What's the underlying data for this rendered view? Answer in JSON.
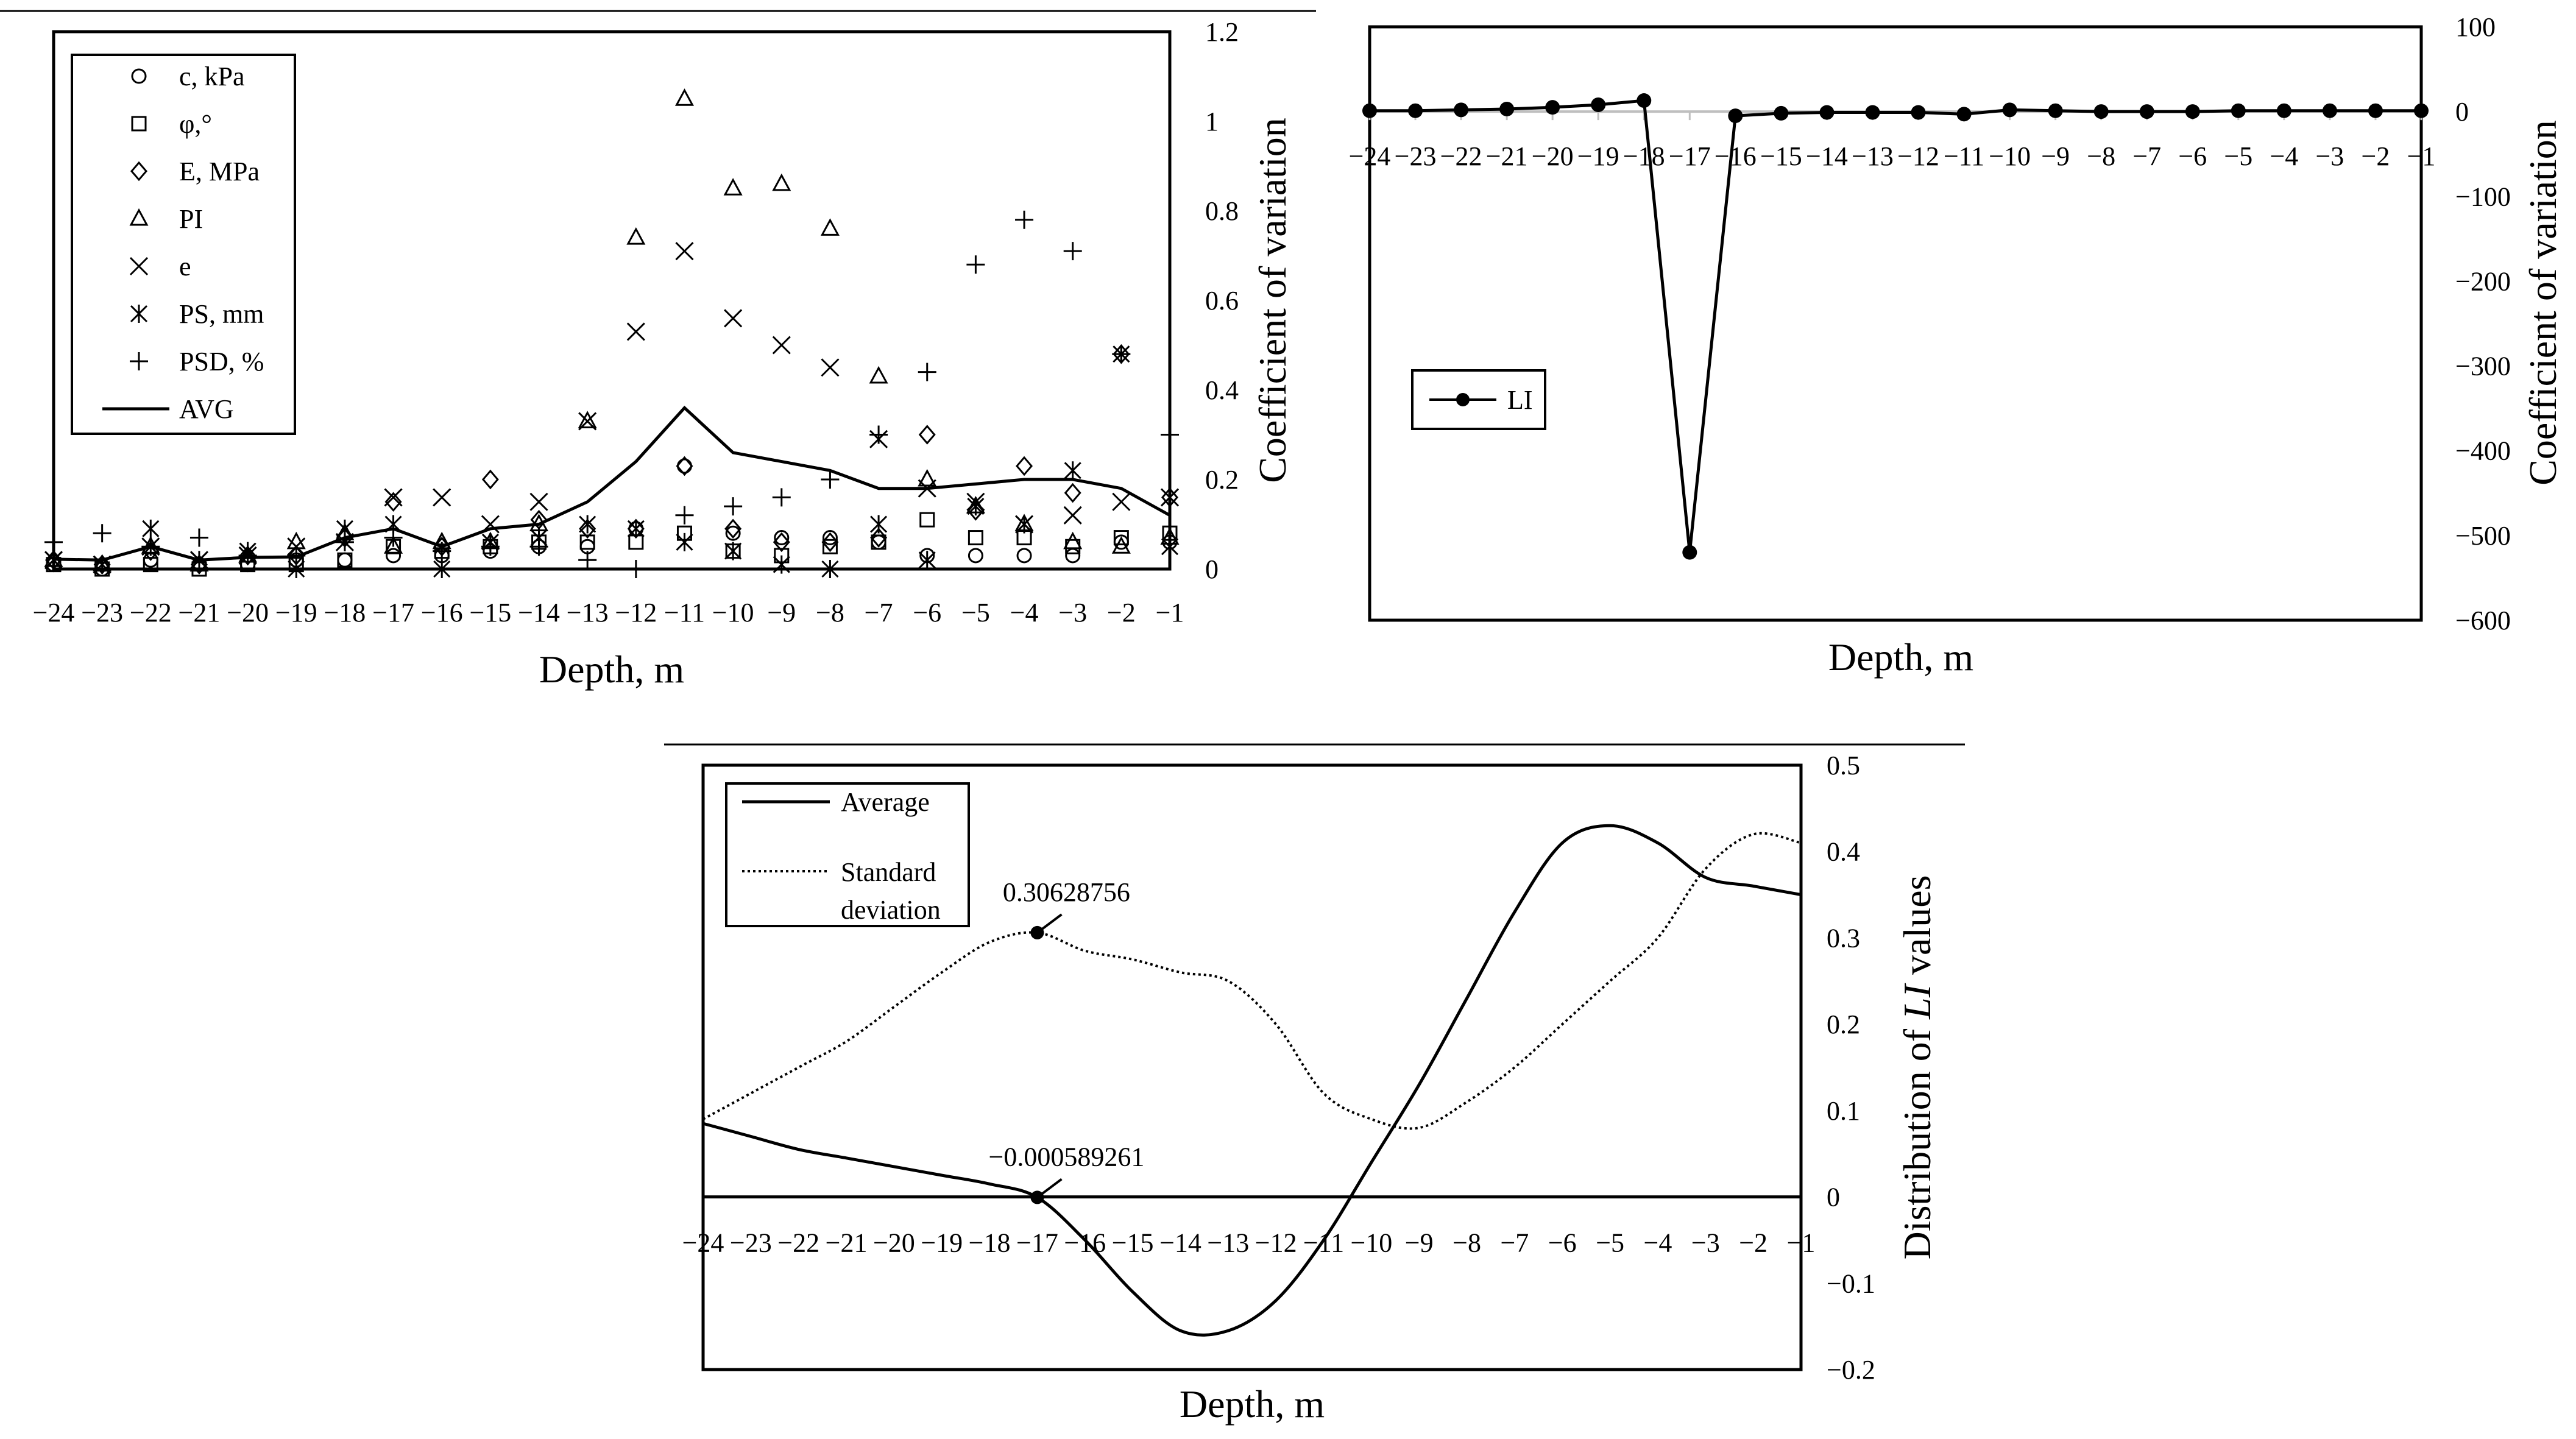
{
  "chart_data": [
    {
      "id": "chart-a",
      "type": "scatter",
      "xlabel": "Depth, m",
      "ylabel": "Coefficient of variation",
      "xlim": [
        -24,
        -1
      ],
      "ylim": [
        0,
        1.2
      ],
      "x_ticks": [
        "−24",
        "−23",
        "−22",
        "−21",
        "−20",
        "−19",
        "−18",
        "−17",
        "−16",
        "−15",
        "−14",
        "−13",
        "−12",
        "−11",
        "−10",
        "−9",
        "−8",
        "−7",
        "−6",
        "−5",
        "−4",
        "−3",
        "−2",
        "−1"
      ],
      "y_ticks": [
        "0",
        "0.2",
        "0.4",
        "0.6",
        "0.8",
        "1",
        "1.2"
      ],
      "x": [
        -24,
        -23,
        -22,
        -21,
        -20,
        -19,
        -18,
        -17,
        -16,
        -15,
        -14,
        -13,
        -12,
        -11,
        -10,
        -9,
        -8,
        -7,
        -6,
        -5,
        -4,
        -3,
        -2,
        -1
      ],
      "legend": [
        "c, kPa",
        "φ,°",
        "E, MPa",
        "PI",
        "e",
        "PS, mm",
        "PSD, %",
        "AVG"
      ],
      "series": [
        {
          "name": "c, kPa",
          "marker": "circle",
          "values": [
            0.01,
            0.0,
            0.02,
            0.01,
            0.01,
            0.02,
            0.02,
            0.03,
            0.03,
            0.04,
            0.05,
            0.05,
            0.09,
            0.23,
            0.08,
            0.07,
            0.07,
            0.06,
            0.03,
            0.03,
            0.03,
            0.03,
            0.06,
            0.06
          ]
        },
        {
          "name": "φ,°",
          "marker": "square",
          "values": [
            0.01,
            0.0,
            0.01,
            0.0,
            0.01,
            0.01,
            0.02,
            0.05,
            0.04,
            0.05,
            0.06,
            0.06,
            0.06,
            0.08,
            0.04,
            0.03,
            0.05,
            0.06,
            0.11,
            0.07,
            0.07,
            0.05,
            0.07,
            0.08
          ]
        },
        {
          "name": "E, MPa",
          "marker": "diamond",
          "values": [
            0.02,
            0.01,
            0.04,
            0.01,
            0.03,
            0.03,
            0.07,
            0.15,
            0.05,
            0.2,
            0.11,
            0.09,
            0.09,
            0.23,
            0.09,
            0.06,
            0.06,
            0.07,
            0.3,
            0.13,
            0.23,
            0.17,
            0.48,
            0.16
          ]
        },
        {
          "name": "PI",
          "marker": "triangle",
          "values": [
            0.02,
            0.01,
            0.05,
            0.01,
            0.03,
            0.06,
            0.08,
            0.05,
            0.06,
            0.06,
            0.1,
            0.33,
            0.74,
            1.05,
            0.85,
            0.86,
            0.76,
            0.43,
            0.2,
            0.14,
            0.1,
            0.06,
            0.05,
            0.07
          ]
        },
        {
          "name": "e",
          "marker": "x",
          "values": [
            0.02,
            0.01,
            0.05,
            0.02,
            0.03,
            0.05,
            0.06,
            0.16,
            0.16,
            0.1,
            0.15,
            0.33,
            0.53,
            0.71,
            0.56,
            0.5,
            0.45,
            0.29,
            0.18,
            0.15,
            0.1,
            0.12,
            0.15,
            0.16
          ]
        },
        {
          "name": "PS, mm",
          "marker": "asterisk",
          "values": [
            0.02,
            0.01,
            0.09,
            0.02,
            0.04,
            0.0,
            0.09,
            0.1,
            0.0,
            0.06,
            0.07,
            0.1,
            0.09,
            0.06,
            0.04,
            0.01,
            0.0,
            0.1,
            0.02,
            0.14,
            0.1,
            0.22,
            0.48,
            0.05
          ]
        },
        {
          "name": "PSD, %",
          "marker": "plus",
          "values": [
            0.06,
            0.08,
            0.05,
            0.07,
            0.03,
            0.03,
            0.06,
            0.07,
            0.04,
            0.05,
            0.05,
            0.02,
            0.0,
            0.12,
            0.14,
            0.16,
            0.2,
            0.3,
            0.44,
            0.68,
            0.78,
            0.71,
            0.48,
            0.3
          ]
        },
        {
          "name": "AVG",
          "marker": "line",
          "values": [
            0.022,
            0.02,
            0.05,
            0.02,
            0.026,
            0.027,
            0.07,
            0.09,
            0.05,
            0.09,
            0.1,
            0.15,
            0.24,
            0.36,
            0.26,
            0.24,
            0.22,
            0.18,
            0.18,
            0.19,
            0.2,
            0.2,
            0.18,
            0.12
          ]
        }
      ]
    },
    {
      "id": "chart-b",
      "type": "line",
      "xlabel": "Depth, m",
      "ylabel": "Coefficient of variation",
      "xlim": [
        -24,
        -1
      ],
      "ylim": [
        -600,
        100
      ],
      "x_ticks": [
        "−24",
        "−23",
        "−22",
        "−21",
        "−20",
        "−19",
        "−18",
        "−17",
        "−16",
        "−15",
        "−14",
        "−13",
        "−12",
        "−11",
        "−10",
        "−9",
        "−8",
        "−7",
        "−6",
        "−5",
        "−4",
        "−3",
        "−2",
        "−1"
      ],
      "y_ticks": [
        "100",
        "0",
        "−100",
        "−200",
        "−300",
        "−400",
        "−500",
        "−600"
      ],
      "x": [
        -24,
        -23,
        -22,
        -21,
        -20,
        -19,
        -18,
        -17,
        -16,
        -15,
        -14,
        -13,
        -12,
        -11,
        -10,
        -9,
        -8,
        -7,
        -6,
        -5,
        -4,
        -3,
        -2,
        -1
      ],
      "legend": [
        "LI"
      ],
      "series": [
        {
          "name": "LI",
          "values": [
            1,
            1,
            2,
            3,
            5,
            8,
            13,
            -520,
            -5,
            -2,
            -1,
            -1,
            -1,
            -3,
            2,
            1,
            0,
            0,
            0,
            1,
            1,
            1,
            1,
            1
          ]
        }
      ]
    },
    {
      "id": "chart-c",
      "type": "line",
      "xlabel": "Depth, m",
      "ylabel": "Distribution of",
      "ylabel_italic": "LI",
      "ylabel_tail": "values",
      "xlim": [
        -24,
        -1
      ],
      "ylim": [
        -0.2,
        0.5
      ],
      "x_ticks": [
        "−24",
        "−23",
        "−22",
        "−21",
        "−20",
        "−19",
        "−18",
        "−17",
        "−16",
        "−15",
        "−14",
        "−13",
        "−12",
        "−11",
        "−10",
        "−9",
        "−8",
        "−7",
        "−6",
        "−5",
        "−4",
        "−3",
        "−2",
        "−1"
      ],
      "y_ticks": [
        "0.5",
        "0.4",
        "0.3",
        "0.2",
        "0.1",
        "0",
        "−0.1",
        "−0.2"
      ],
      "x": [
        -24,
        -23,
        -22,
        -21,
        -20,
        -19,
        -18,
        -17,
        -16,
        -15,
        -14,
        -13,
        -12,
        -11,
        -10,
        -9,
        -8,
        -7,
        -6,
        -5,
        -4,
        -3,
        -2,
        -1
      ],
      "legend": [
        "Average",
        "Standard deviation"
      ],
      "series": [
        {
          "name": "Average",
          "style": "solid",
          "values": [
            0.085,
            0.07,
            0.055,
            0.045,
            0.035,
            0.025,
            0.015,
            -0.0006,
            -0.05,
            -0.11,
            -0.155,
            -0.155,
            -0.12,
            -0.05,
            0.04,
            0.13,
            0.23,
            0.33,
            0.41,
            0.43,
            0.41,
            0.37,
            0.36,
            0.35
          ]
        },
        {
          "name": "Standard deviation",
          "style": "dotted",
          "values": [
            0.09,
            0.12,
            0.15,
            0.18,
            0.22,
            0.26,
            0.295,
            0.306,
            0.285,
            0.275,
            0.26,
            0.25,
            0.2,
            0.12,
            0.09,
            0.08,
            0.11,
            0.15,
            0.2,
            0.25,
            0.3,
            0.38,
            0.42,
            0.41
          ]
        }
      ],
      "annotations": [
        {
          "text": "0.30628756",
          "x": -17,
          "y": 0.306,
          "series": "Standard deviation"
        },
        {
          "text": "−0.000589261",
          "x": -17,
          "y": -0.0006,
          "series": "Average"
        }
      ],
      "legend_lines": [
        "Standard",
        "deviation"
      ]
    }
  ]
}
